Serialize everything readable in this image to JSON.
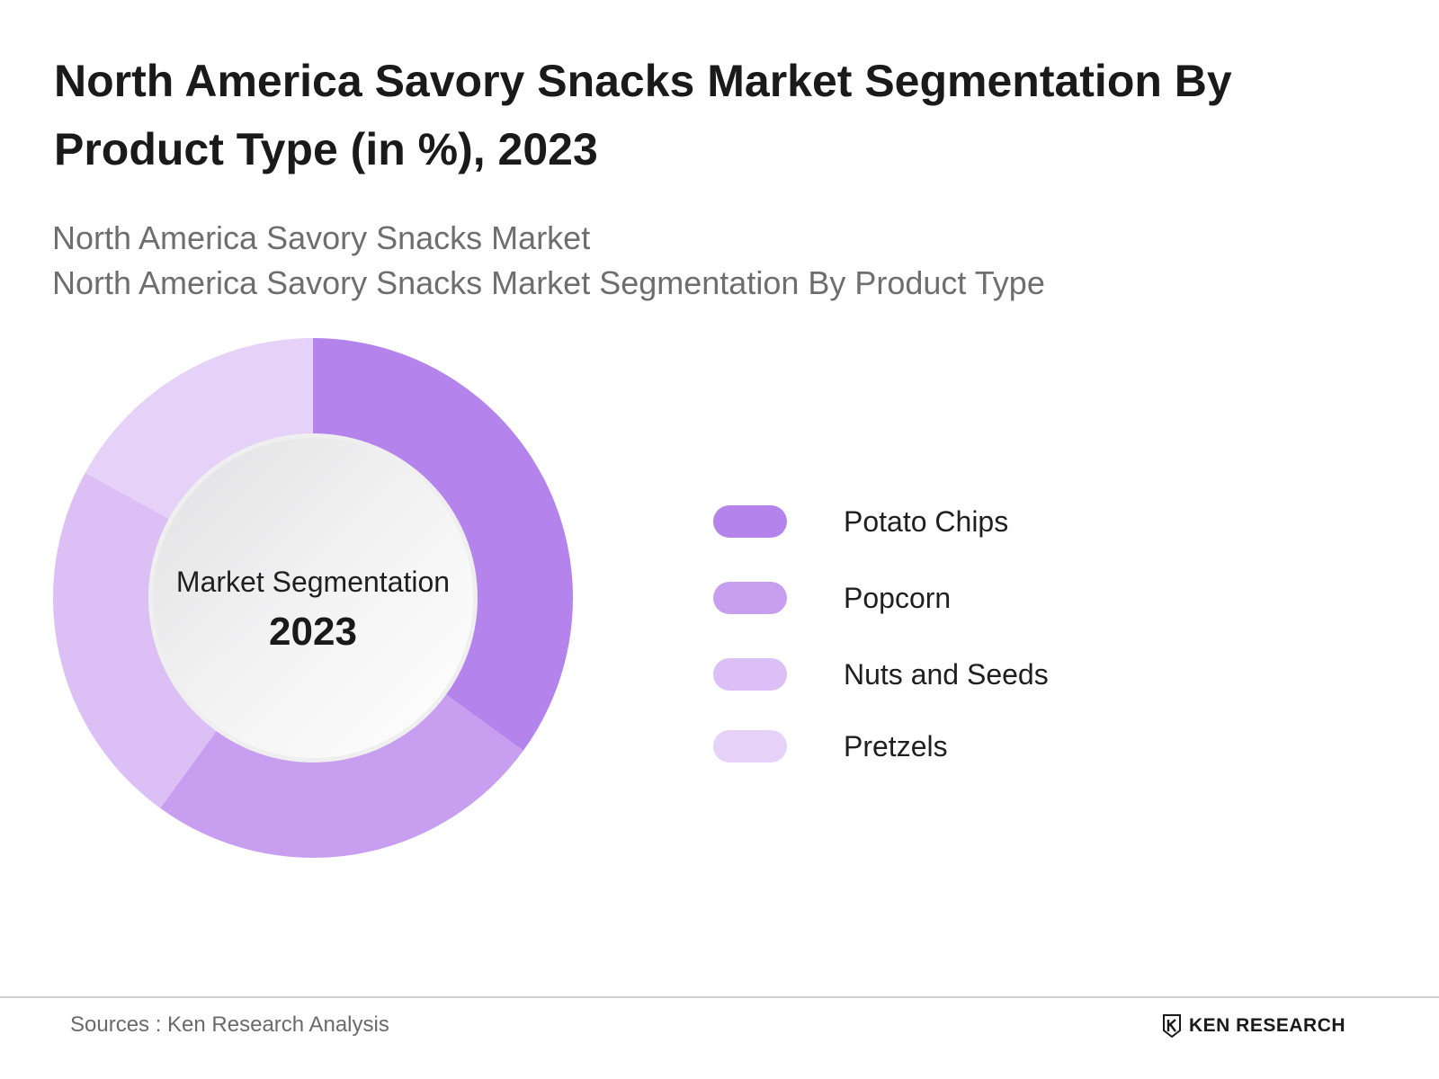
{
  "header": {
    "title": "North America Savory Snacks Market Segmentation By Product Type (in %), 2023",
    "subtitle_lines": [
      "North America Savory Snacks Market",
      "North America Savory Snacks Market Segmentation By Product Type"
    ]
  },
  "chart_data": {
    "type": "pie",
    "variant": "donut",
    "center_label": "Market Segmentation",
    "center_year": "2023",
    "categories": [
      "Potato Chips",
      "Popcorn",
      "Nuts and Seeds",
      "Pretzels"
    ],
    "values": [
      35,
      25,
      23,
      17
    ],
    "colors": [
      "#b484ec",
      "#c89ff0",
      "#dcc0f5",
      "#e6d1f8"
    ],
    "legend_position": "right"
  },
  "footer": {
    "source": "Sources : Ken Research Analysis",
    "logo_text": "KEN RESEARCH"
  }
}
